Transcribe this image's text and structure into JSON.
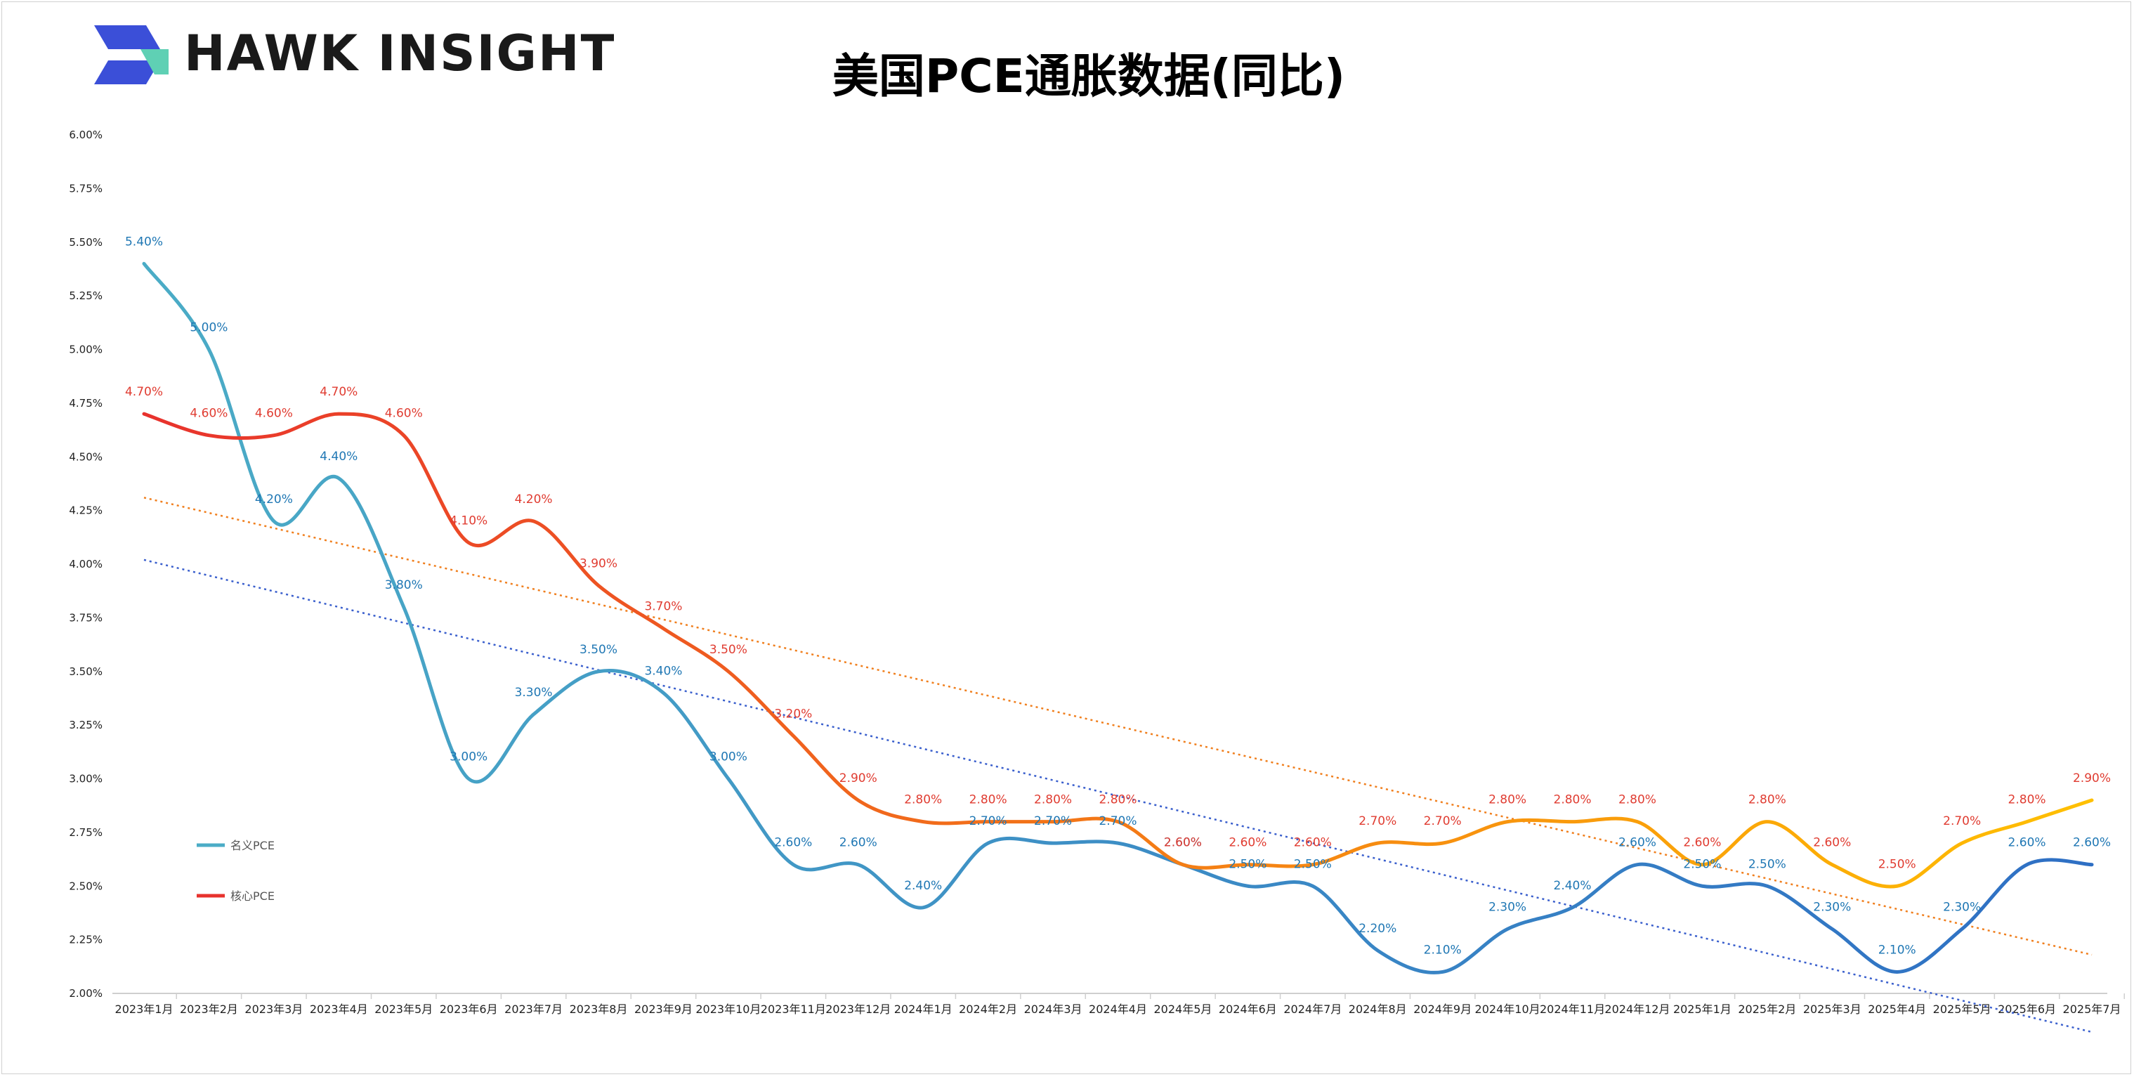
{
  "brand": {
    "name": "HAWK INSIGHT"
  },
  "chart_data": {
    "type": "line",
    "title": "美国PCE通胀数据(同比)",
    "xlabel": "",
    "ylabel": "",
    "ylim": [
      2.0,
      6.0
    ],
    "ytick_step": 0.25,
    "y_tick_labels": [
      "2.00%",
      "2.25%",
      "2.50%",
      "2.75%",
      "3.00%",
      "3.25%",
      "3.50%",
      "3.75%",
      "4.00%",
      "4.25%",
      "4.50%",
      "4.75%",
      "5.00%",
      "5.25%",
      "5.50%",
      "5.75%",
      "6.00%"
    ],
    "categories": [
      "2023年1月",
      "2023年2月",
      "2023年3月",
      "2023年4月",
      "2023年5月",
      "2023年6月",
      "2023年7月",
      "2023年8月",
      "2023年9月",
      "2023年10月",
      "2023年11月",
      "2023年12月",
      "2024年1月",
      "2024年2月",
      "2024年3月",
      "2024年4月",
      "2024年5月",
      "2024年6月",
      "2024年7月",
      "2024年8月",
      "2024年9月",
      "2024年10月",
      "2024年11月",
      "2024年12月",
      "2025年1月",
      "2025年2月",
      "2025年3月",
      "2025年4月",
      "2025年5月",
      "2025年6月",
      "2025年7月"
    ],
    "series": [
      {
        "name": "名义PCE",
        "color_start": "#4bacc6",
        "color_end": "#2e6fc4",
        "label_color": "#1f77b4",
        "values": [
          5.4,
          5.0,
          4.2,
          4.4,
          3.8,
          3.0,
          3.3,
          3.5,
          3.4,
          3.0,
          2.6,
          2.6,
          2.4,
          2.7,
          2.7,
          2.7,
          2.6,
          2.5,
          2.5,
          2.2,
          2.1,
          2.3,
          2.4,
          2.6,
          2.5,
          2.5,
          2.3,
          2.1,
          2.3,
          2.6,
          2.6
        ],
        "labels": [
          "5.40%",
          "5.00%",
          "4.20%",
          "4.40%",
          "3.80%",
          "3.00%",
          "3.30%",
          "3.50%",
          "3.40%",
          "3.00%",
          "2.60%",
          "2.60%",
          "2.40%",
          "2.70%",
          "2.70%",
          "2.70%",
          "2.60%",
          "2.50%",
          "2.50%",
          "2.20%",
          "2.10%",
          "2.30%",
          "2.40%",
          "2.60%",
          "2.50%",
          "2.50%",
          "2.30%",
          "2.10%",
          "2.30%",
          "2.60%",
          "2.60%"
        ],
        "trendline": {
          "color": "#3a5fcd",
          "start": 4.02,
          "end": 1.82
        }
      },
      {
        "name": "核心PCE",
        "color_start": "#e8322d",
        "color_end": "#ffc000",
        "label_color": "#e03c31",
        "values": [
          4.7,
          4.6,
          4.6,
          4.7,
          4.6,
          4.1,
          4.2,
          3.9,
          3.7,
          3.5,
          3.2,
          2.9,
          2.8,
          2.8,
          2.8,
          2.8,
          2.6,
          2.6,
          2.6,
          2.7,
          2.7,
          2.8,
          2.8,
          2.8,
          2.6,
          2.8,
          2.6,
          2.5,
          2.7,
          2.8,
          2.9
        ],
        "labels": [
          "4.70%",
          "4.60%",
          "4.60%",
          "4.70%",
          "4.60%",
          "4.10%",
          "4.20%",
          "3.90%",
          "3.70%",
          "3.50%",
          "3.20%",
          "2.90%",
          "2.80%",
          "2.80%",
          "2.80%",
          "2.80%",
          "2.60%",
          "2.60%",
          "2.60%",
          "2.70%",
          "2.70%",
          "2.80%",
          "2.80%",
          "2.80%",
          "2.60%",
          "2.80%",
          "2.60%",
          "2.50%",
          "2.70%",
          "2.80%",
          "2.90%"
        ],
        "trendline": {
          "color": "#f07f1e",
          "start": 4.31,
          "end": 2.18
        }
      }
    ],
    "legend": {
      "placement": "left-inside"
    },
    "grid": false
  }
}
